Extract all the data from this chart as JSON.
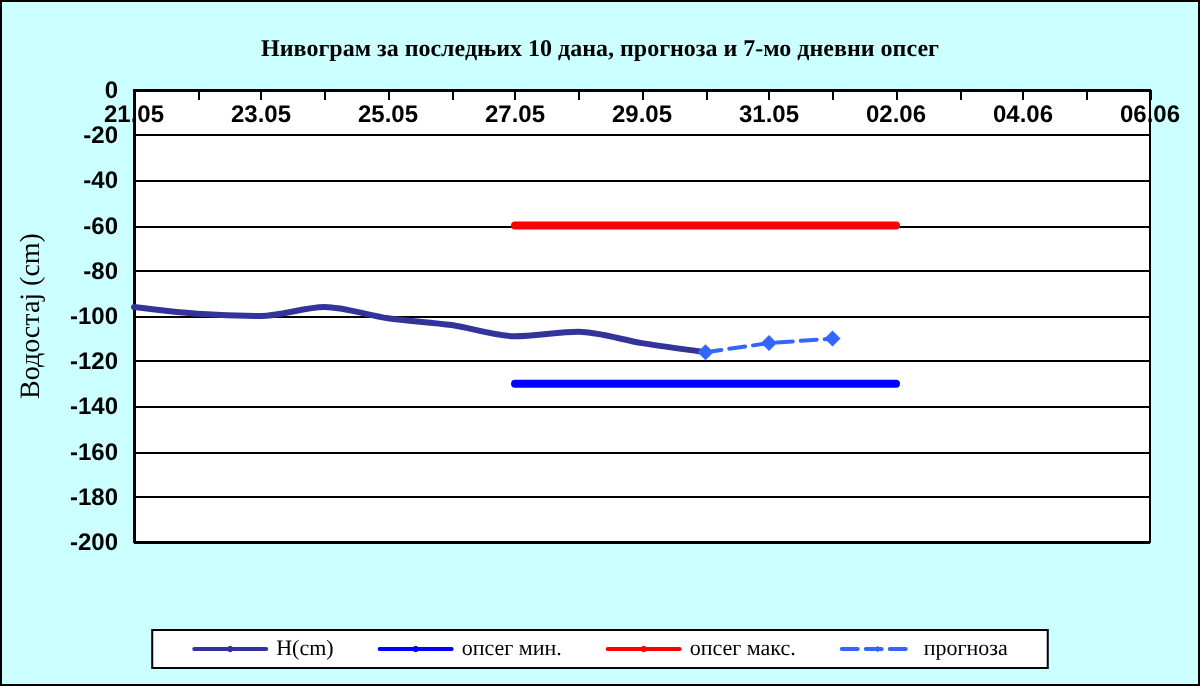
{
  "chart_data": {
    "type": "line",
    "title": "Нивограм за последњих 10 дана, прогноза и 7-мо дневни опсег",
    "ylabel": "Водостај (cm)",
    "xlim": [
      "--05-21",
      "--06-06"
    ],
    "xticks": [
      {
        "value": "--05-21",
        "label": "21.05"
      },
      {
        "value": "--05-22",
        "label": null
      },
      {
        "value": "--05-23",
        "label": "23.05"
      },
      {
        "value": "--05-24",
        "label": null
      },
      {
        "value": "--05-25",
        "label": "25.05"
      },
      {
        "value": "--05-26",
        "label": null
      },
      {
        "value": "--05-27",
        "label": "27.05"
      },
      {
        "value": "--05-28",
        "label": null
      },
      {
        "value": "--05-29",
        "label": "29.05"
      },
      {
        "value": "--05-30",
        "label": null
      },
      {
        "value": "--05-31",
        "label": "31.05"
      },
      {
        "value": "--06-01",
        "label": null
      },
      {
        "value": "--06-02",
        "label": "02.06"
      },
      {
        "value": "--06-03",
        "label": null
      },
      {
        "value": "--06-04",
        "label": "04.06"
      },
      {
        "value": "--06-05",
        "label": null
      },
      {
        "value": "--06-06",
        "label": "06.06"
      }
    ],
    "ylim": [
      -200,
      0
    ],
    "yticks": [
      -200,
      -180,
      -160,
      -140,
      -120,
      -100,
      -80,
      -60,
      -40,
      -20,
      0
    ],
    "grid": "y",
    "legend": "bottom",
    "series": [
      {
        "name": "H(cm)",
        "color": "#333399",
        "x": [
          "--05-21",
          "--05-22",
          "--05-23",
          "--05-24",
          "--05-25",
          "--05-26",
          "--05-27",
          "--05-28",
          "--05-29",
          "--05-30"
        ],
        "values": [
          -96,
          -99,
          -100,
          -96,
          -101,
          -104,
          -109,
          -107,
          -112,
          -116
        ],
        "marker": "none",
        "line_style": "solid"
      },
      {
        "name": "опсег мин.",
        "color": "#0000ff",
        "x": [
          "--05-27",
          "--06-02"
        ],
        "values": [
          -130,
          -130
        ],
        "marker": "none",
        "line_style": "solid"
      },
      {
        "name": "опсег макс.",
        "color": "#ff0000",
        "x": [
          "--05-27",
          "--06-02"
        ],
        "values": [
          -60,
          -60
        ],
        "marker": "none",
        "line_style": "solid"
      },
      {
        "name": "прогноза",
        "color": "#3366ff",
        "x": [
          "--05-30",
          "--05-31",
          "--06-01"
        ],
        "values": [
          -116,
          -112,
          -110
        ],
        "marker": "diamond",
        "line_style": "dashed"
      }
    ]
  }
}
